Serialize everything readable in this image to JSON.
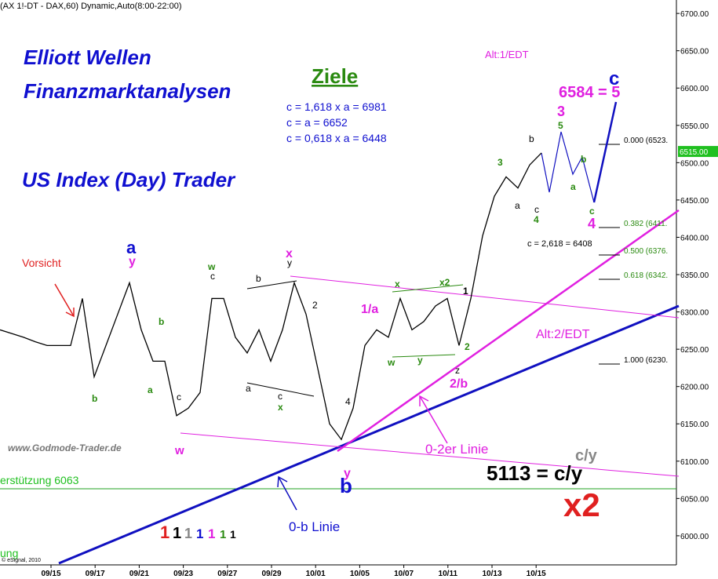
{
  "chart_data": {
    "type": "line",
    "title": "(AX 1!-DT - DAX,60) Dynamic,Auto(8:00-22:00)",
    "values": [
      6276,
      6271,
      6266,
      6260,
      6255,
      6255,
      6255,
      6318,
      6213,
      6255,
      6297,
      6339,
      6276,
      6234,
      6234,
      6161,
      6171,
      6192,
      6318,
      6318,
      6266,
      6245,
      6276,
      6234,
      6276,
      6339,
      6297,
      6224,
      6150,
      6129,
      6171,
      6255,
      6276,
      6266,
      6318,
      6276,
      6287,
      6308,
      6318,
      6255,
      6318,
      6402,
      6455,
      6481,
      6466,
      6497,
      6513
    ],
    "color": "#000000",
    "date_labels": [
      "09/15",
      "09/17",
      "09/21",
      "09/23",
      "09/27",
      "09/29",
      "10/01",
      "10/05",
      "10/07",
      "10/11",
      "10/13",
      "10/15"
    ],
    "ylim": [
      5961,
      6718
    ],
    "yticks": [
      {
        "value": 6000,
        "label": "6000.00"
      },
      {
        "value": 6050,
        "label": "6050.00"
      },
      {
        "value": 6100,
        "label": "6100.00"
      },
      {
        "value": 6150,
        "label": "6150.00"
      },
      {
        "value": 6200,
        "label": "6200.00"
      },
      {
        "value": 6250,
        "label": "6250.00"
      },
      {
        "value": 6300,
        "label": "6300.00"
      },
      {
        "value": 6350,
        "label": "6350.00"
      },
      {
        "value": 6400,
        "label": "6400.00"
      },
      {
        "value": 6450,
        "label": "6450.00"
      },
      {
        "value": 6500,
        "label": "6500.00"
      },
      {
        "value": 6550,
        "label": "6550.00"
      },
      {
        "value": 6600,
        "label": "6600.00"
      },
      {
        "value": 6650,
        "label": "6650.00"
      },
      {
        "value": 6700,
        "label": "6700.00"
      }
    ],
    "current_price": {
      "value": 6515,
      "label": "6515.00"
    },
    "annotations": [
      "Elliott Wellen",
      "Finanzmarktanalysen",
      "US Index (Day) Trader",
      "Ziele",
      "c = 1,618 x a = 6981",
      "c = a = 6652",
      "c = 0,618 x a = 6448",
      "Alt:1/EDT",
      "6584 = 5",
      "c",
      "Vorsicht",
      "www.Godmode-Trader.de",
      "erstützung 6063",
      "0-b Linie",
      "0-2er Linie",
      "Alt:2/EDT",
      "5113 = c/y",
      "c/y",
      "x2",
      "c = 2,618 = 6408",
      "0.000 (6523.",
      "0.382 (6411.",
      "0.500 (6376.",
      "0.618 (6342.",
      "1.000 (6230.",
      "ung",
      "© eSignal, 2010"
    ],
    "wave_labels": [
      "a",
      "b",
      "1/a",
      "2/b",
      "3",
      "4",
      "x",
      "w",
      "y",
      "y",
      "5",
      "3",
      "4",
      "2",
      "1",
      "x2",
      "b",
      "a",
      "b",
      "a",
      "c",
      "a",
      "b",
      "c",
      "w",
      "c",
      "y",
      "b",
      "2",
      "4",
      "x",
      "c",
      "a",
      "w",
      "y",
      "x",
      "z",
      "b",
      "c",
      "1",
      "1",
      "1",
      "1",
      "1",
      "1",
      "1"
    ]
  }
}
